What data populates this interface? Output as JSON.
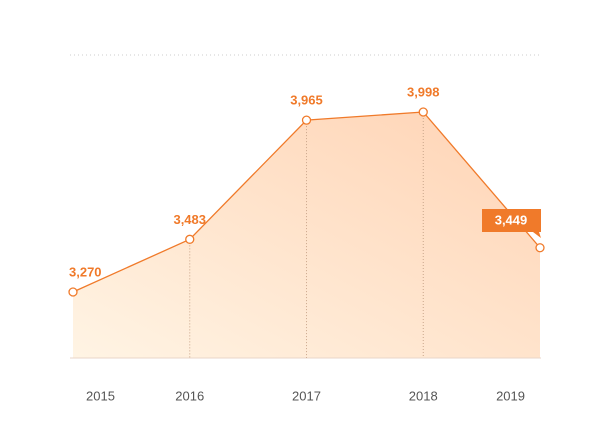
{
  "chart_data": {
    "type": "area",
    "categories": [
      "2015",
      "2016",
      "2017",
      "2018",
      "2019"
    ],
    "values": [
      3270,
      3483,
      3965,
      3998,
      3449
    ],
    "value_labels": [
      "3,270",
      "3,483",
      "3,965",
      "3,998",
      "3,449"
    ],
    "color": "#f07a2a"
  }
}
